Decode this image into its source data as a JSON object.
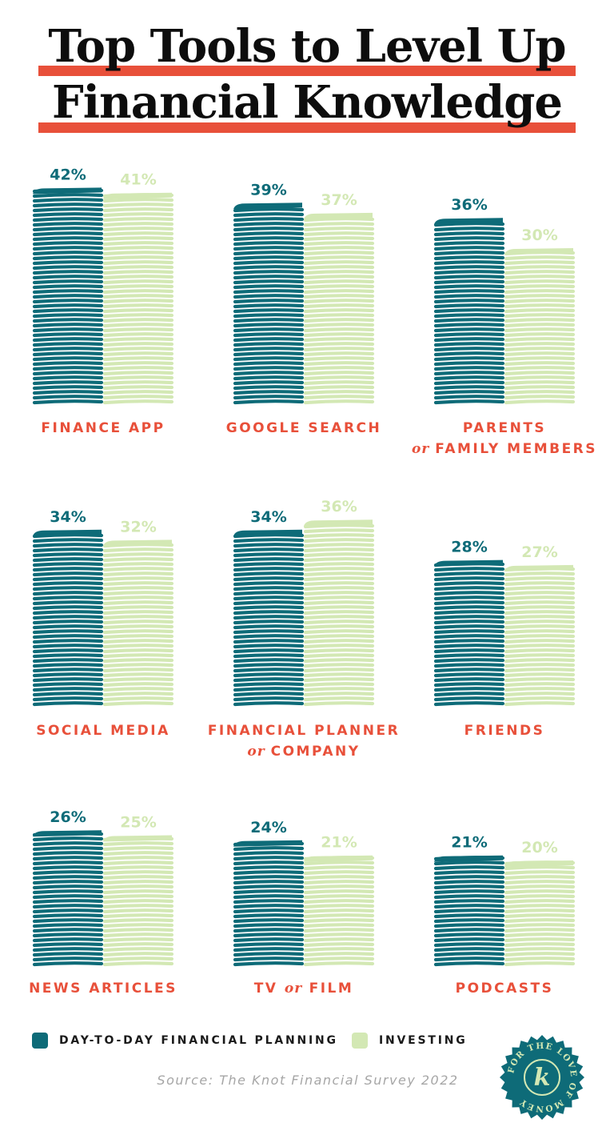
{
  "title": {
    "line1": "Top Tools to Level Up",
    "line2": "Financial Knowledge"
  },
  "colors": {
    "day_to_day": "#0e6b78",
    "investing": "#d3e8b4",
    "accent": "#e8503a",
    "title": "#0d0d0d"
  },
  "chart_data": {
    "type": "bar",
    "categories": [
      {
        "name": "FINANCE APP",
        "line1": "FINANCE APP"
      },
      {
        "name": "GOOGLE SEARCH",
        "line1": "GOOGLE SEARCH"
      },
      {
        "name": "PARENTS or FAMILY MEMBERS",
        "line1": "PARENTS",
        "conj": "or",
        "line2": "FAMILY MEMBERS"
      },
      {
        "name": "SOCIAL MEDIA",
        "line1": "SOCIAL MEDIA"
      },
      {
        "name": "FINANCIAL PLANNER or COMPANY",
        "line1": "FINANCIAL PLANNER",
        "conj": "or",
        "line2": "COMPANY"
      },
      {
        "name": "FRIENDS",
        "line1": "FRIENDS"
      },
      {
        "name": "NEWS ARTICLES",
        "line1": "NEWS ARTICLES"
      },
      {
        "name": "TV or FILM",
        "pre": "TV",
        "conj": "or",
        "post": "FILM"
      },
      {
        "name": "PODCASTS",
        "line1": "PODCASTS"
      }
    ],
    "series": [
      {
        "name": "DAY-TO-DAY FINANCIAL PLANNING",
        "values": [
          42,
          39,
          36,
          34,
          34,
          28,
          26,
          24,
          21
        ]
      },
      {
        "name": "INVESTING",
        "values": [
          41,
          37,
          30,
          32,
          36,
          27,
          25,
          21,
          20
        ]
      }
    ],
    "value_suffix": "%",
    "legend_position": "bottom-left"
  },
  "source": "Source: The Knot Financial Survey 2022",
  "badge": {
    "text": "FOR THE LOVE OF MONEY",
    "letter": "k"
  }
}
